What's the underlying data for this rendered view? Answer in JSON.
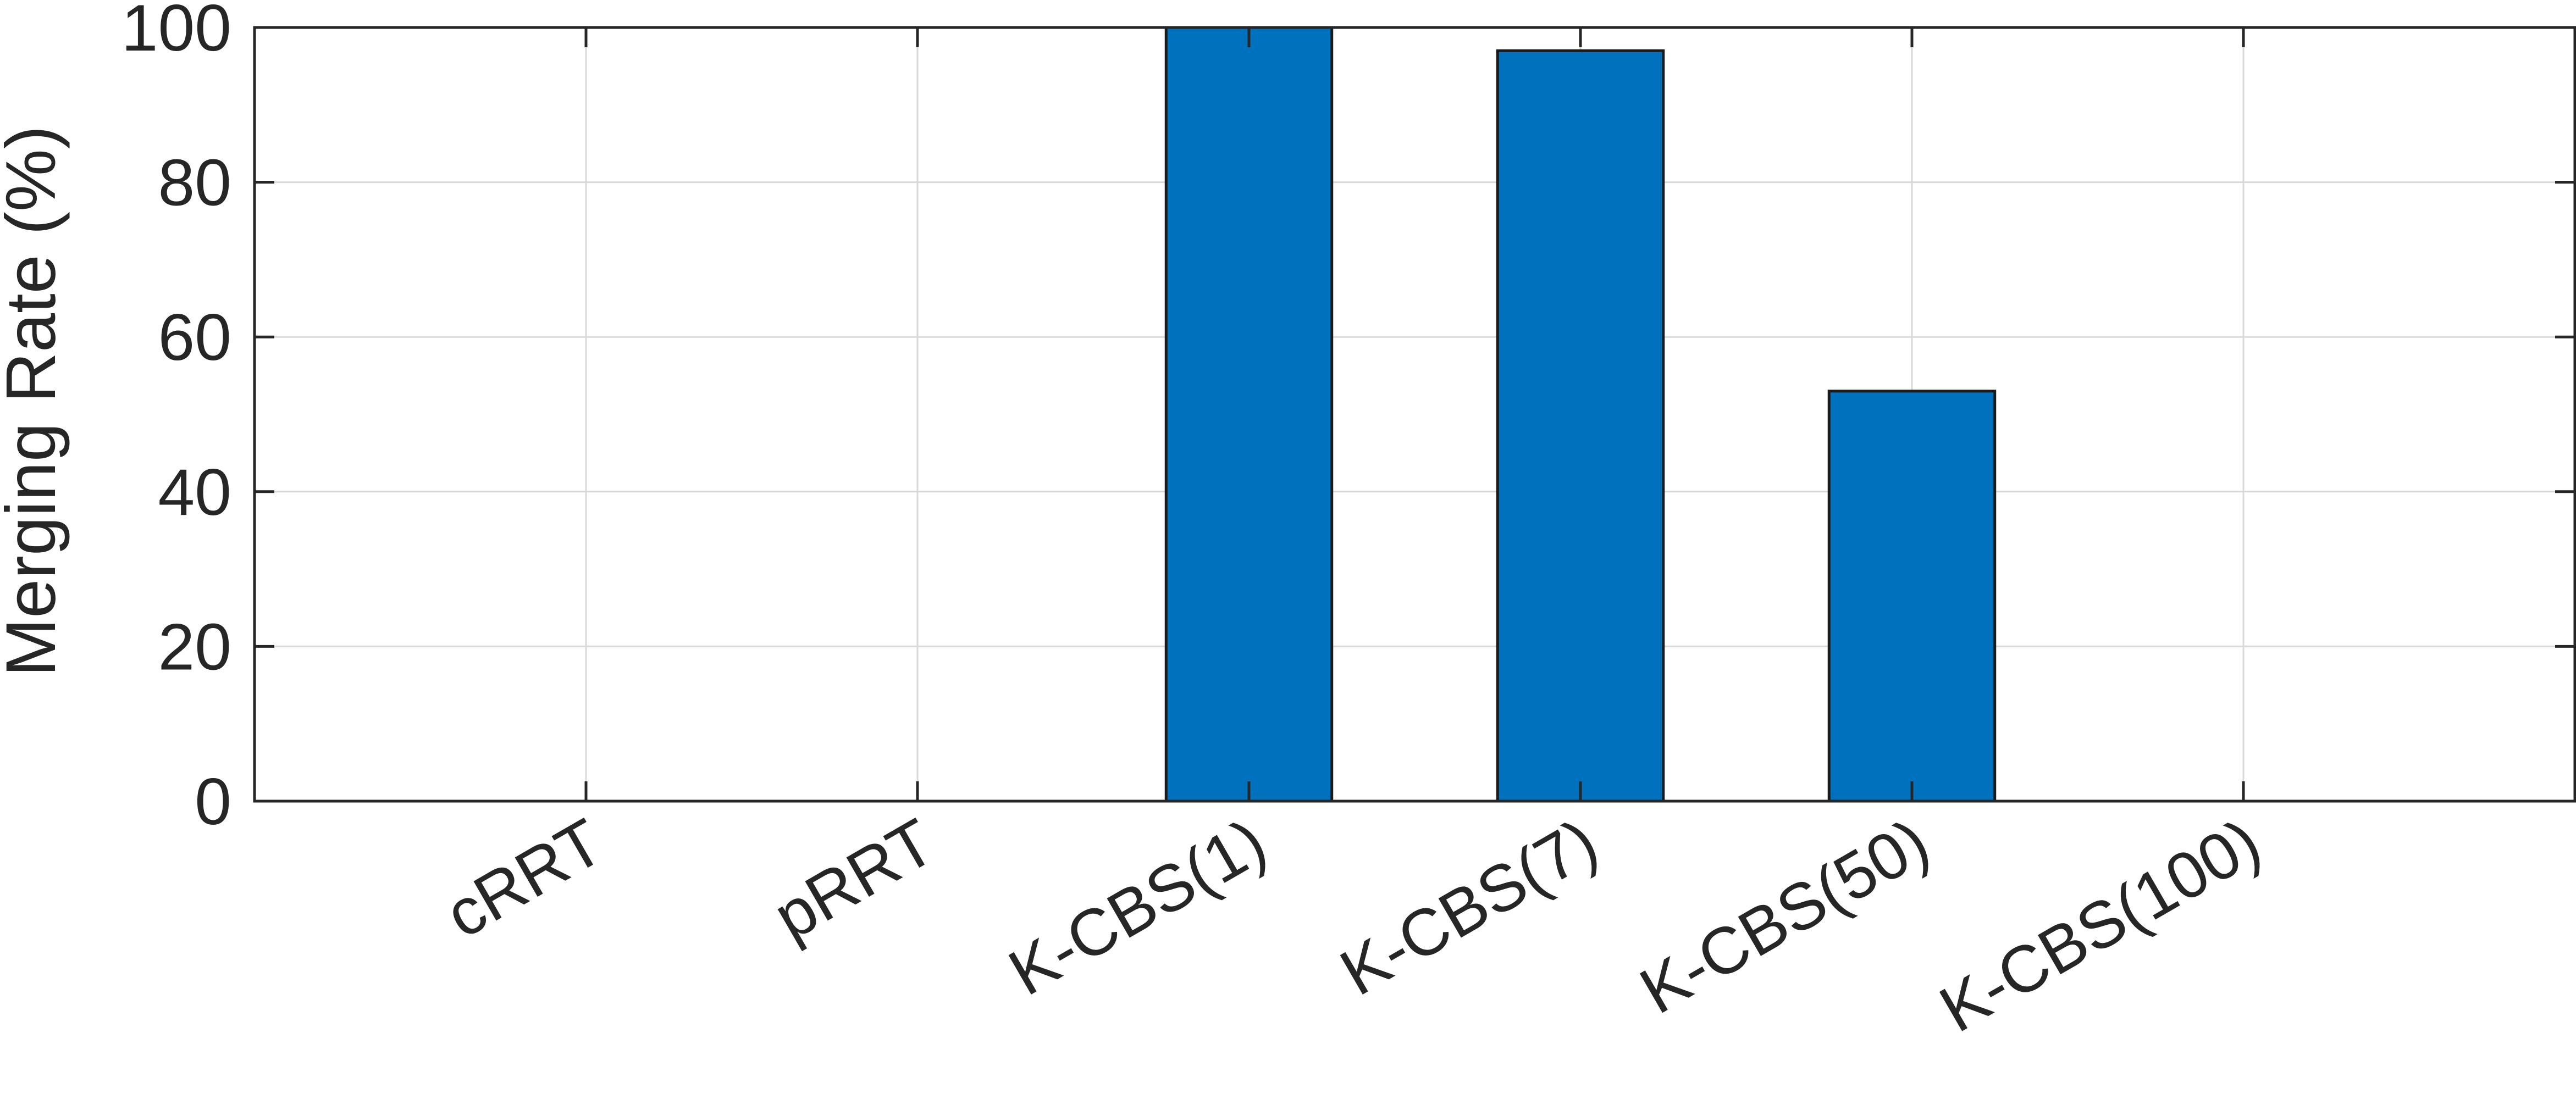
{
  "chart_data": {
    "type": "bar",
    "title": "",
    "xlabel": "",
    "ylabel": "Merging Rate (%)",
    "categories": [
      "cRRT",
      "pRRT",
      "K-CBS(1)",
      "K-CBS(7)",
      "K-CBS(50)",
      "K-CBS(100)"
    ],
    "values": [
      0,
      0,
      100,
      97,
      53,
      0
    ],
    "ylim": [
      0,
      100
    ],
    "yticks": [
      0,
      20,
      40,
      60,
      80,
      100
    ],
    "grid": true,
    "legend": "none",
    "bar_color": "#0072bd"
  }
}
